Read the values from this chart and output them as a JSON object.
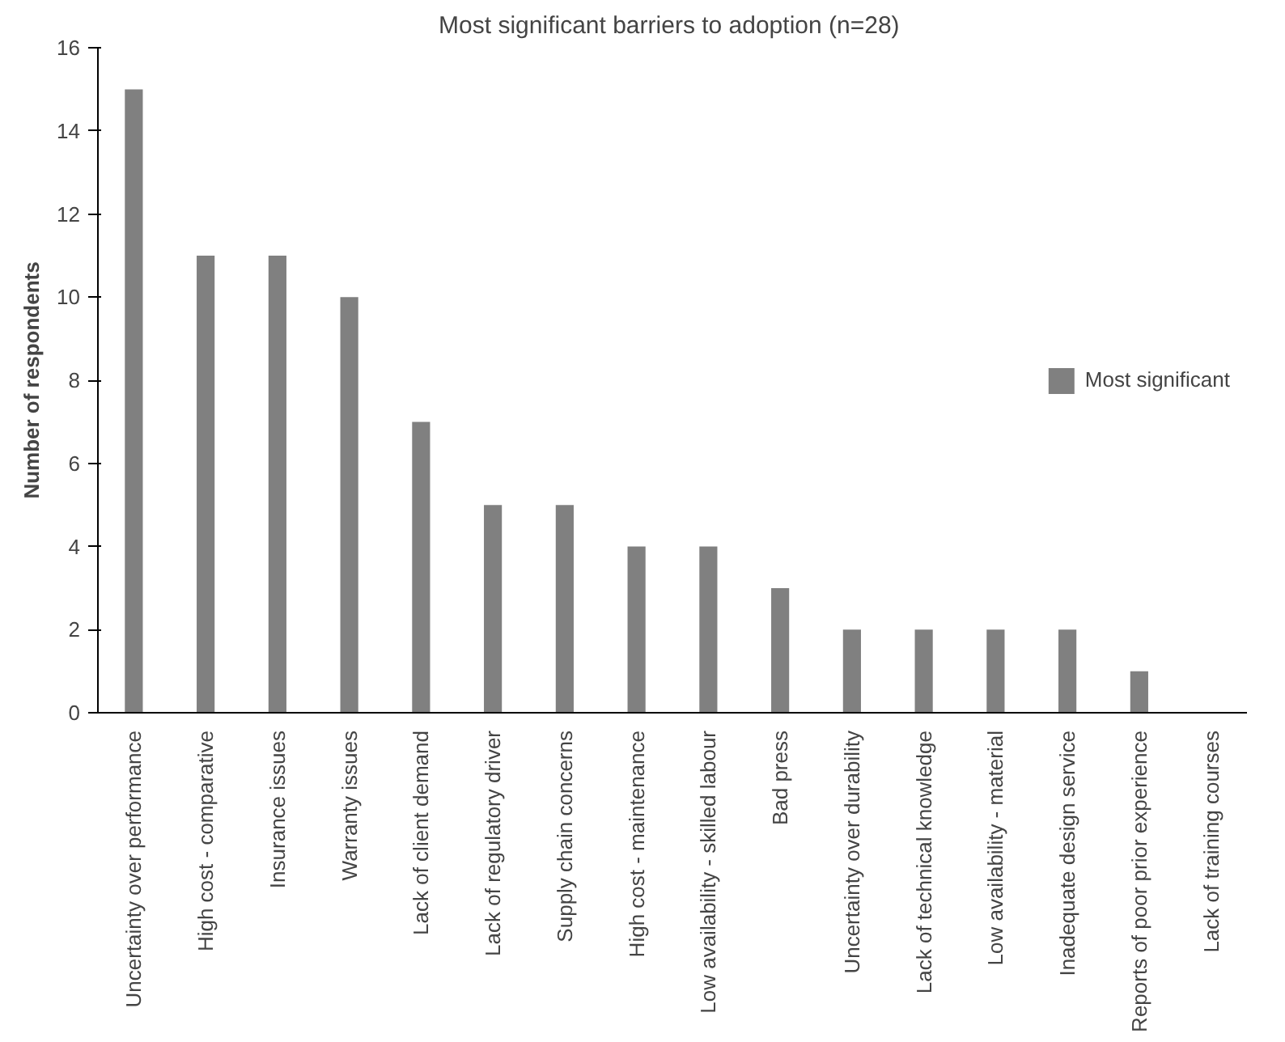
{
  "chart_data": {
    "type": "bar",
    "title": "Most significant barriers to adoption  (n=28)",
    "ylabel": "Number of respondents",
    "categories": [
      "Uncertainty over performance",
      "High cost - comparative",
      "Insurance issues",
      "Warranty issues",
      "Lack of client demand",
      "Lack of regulatory driver",
      "Supply chain concerns",
      "High cost - maintenance",
      "Low availability - skilled labour",
      "Bad press",
      "Uncertainty over durability",
      "Lack of technical knowledge",
      "Low availability - material",
      "Inadequate design service",
      "Reports of poor prior experience",
      "Lack of training courses"
    ],
    "series": [
      {
        "name": "Most significant",
        "color": "#808080",
        "values": [
          15,
          11,
          11,
          10,
          7,
          5,
          5,
          4,
          4,
          3,
          2,
          2,
          2,
          2,
          1,
          0
        ]
      }
    ],
    "ylim": [
      0,
      16
    ],
    "yticks": [
      0,
      2,
      4,
      6,
      8,
      10,
      12,
      14,
      16
    ],
    "grid": false,
    "legend": "right"
  }
}
